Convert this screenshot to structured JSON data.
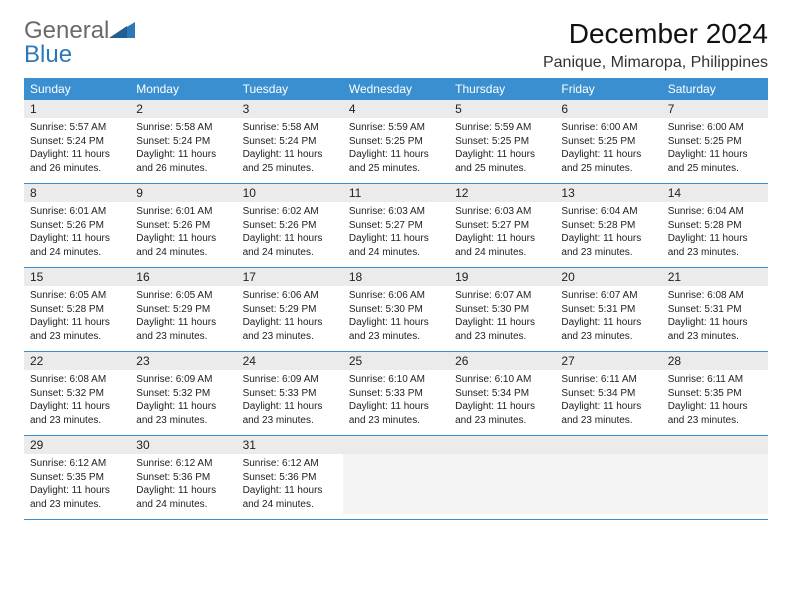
{
  "brand": {
    "word1": "General",
    "word2": "Blue"
  },
  "title": "December 2024",
  "location": "Panique, Mimaropa, Philippines",
  "colors": {
    "header_bg": "#3a8fd0",
    "header_text": "#ffffff",
    "daynum_bg": "#ebebeb",
    "body_bg": "#ffffff",
    "row_border": "#3a8fd0",
    "brand_gray": "#6a6a6a",
    "brand_blue": "#2f78b8"
  },
  "weekdays": [
    "Sunday",
    "Monday",
    "Tuesday",
    "Wednesday",
    "Thursday",
    "Friday",
    "Saturday"
  ],
  "weeks": [
    [
      {
        "n": "1",
        "sr": "Sunrise: 5:57 AM",
        "ss": "Sunset: 5:24 PM",
        "d1": "Daylight: 11 hours",
        "d2": "and 26 minutes."
      },
      {
        "n": "2",
        "sr": "Sunrise: 5:58 AM",
        "ss": "Sunset: 5:24 PM",
        "d1": "Daylight: 11 hours",
        "d2": "and 26 minutes."
      },
      {
        "n": "3",
        "sr": "Sunrise: 5:58 AM",
        "ss": "Sunset: 5:24 PM",
        "d1": "Daylight: 11 hours",
        "d2": "and 25 minutes."
      },
      {
        "n": "4",
        "sr": "Sunrise: 5:59 AM",
        "ss": "Sunset: 5:25 PM",
        "d1": "Daylight: 11 hours",
        "d2": "and 25 minutes."
      },
      {
        "n": "5",
        "sr": "Sunrise: 5:59 AM",
        "ss": "Sunset: 5:25 PM",
        "d1": "Daylight: 11 hours",
        "d2": "and 25 minutes."
      },
      {
        "n": "6",
        "sr": "Sunrise: 6:00 AM",
        "ss": "Sunset: 5:25 PM",
        "d1": "Daylight: 11 hours",
        "d2": "and 25 minutes."
      },
      {
        "n": "7",
        "sr": "Sunrise: 6:00 AM",
        "ss": "Sunset: 5:25 PM",
        "d1": "Daylight: 11 hours",
        "d2": "and 25 minutes."
      }
    ],
    [
      {
        "n": "8",
        "sr": "Sunrise: 6:01 AM",
        "ss": "Sunset: 5:26 PM",
        "d1": "Daylight: 11 hours",
        "d2": "and 24 minutes."
      },
      {
        "n": "9",
        "sr": "Sunrise: 6:01 AM",
        "ss": "Sunset: 5:26 PM",
        "d1": "Daylight: 11 hours",
        "d2": "and 24 minutes."
      },
      {
        "n": "10",
        "sr": "Sunrise: 6:02 AM",
        "ss": "Sunset: 5:26 PM",
        "d1": "Daylight: 11 hours",
        "d2": "and 24 minutes."
      },
      {
        "n": "11",
        "sr": "Sunrise: 6:03 AM",
        "ss": "Sunset: 5:27 PM",
        "d1": "Daylight: 11 hours",
        "d2": "and 24 minutes."
      },
      {
        "n": "12",
        "sr": "Sunrise: 6:03 AM",
        "ss": "Sunset: 5:27 PM",
        "d1": "Daylight: 11 hours",
        "d2": "and 24 minutes."
      },
      {
        "n": "13",
        "sr": "Sunrise: 6:04 AM",
        "ss": "Sunset: 5:28 PM",
        "d1": "Daylight: 11 hours",
        "d2": "and 23 minutes."
      },
      {
        "n": "14",
        "sr": "Sunrise: 6:04 AM",
        "ss": "Sunset: 5:28 PM",
        "d1": "Daylight: 11 hours",
        "d2": "and 23 minutes."
      }
    ],
    [
      {
        "n": "15",
        "sr": "Sunrise: 6:05 AM",
        "ss": "Sunset: 5:28 PM",
        "d1": "Daylight: 11 hours",
        "d2": "and 23 minutes."
      },
      {
        "n": "16",
        "sr": "Sunrise: 6:05 AM",
        "ss": "Sunset: 5:29 PM",
        "d1": "Daylight: 11 hours",
        "d2": "and 23 minutes."
      },
      {
        "n": "17",
        "sr": "Sunrise: 6:06 AM",
        "ss": "Sunset: 5:29 PM",
        "d1": "Daylight: 11 hours",
        "d2": "and 23 minutes."
      },
      {
        "n": "18",
        "sr": "Sunrise: 6:06 AM",
        "ss": "Sunset: 5:30 PM",
        "d1": "Daylight: 11 hours",
        "d2": "and 23 minutes."
      },
      {
        "n": "19",
        "sr": "Sunrise: 6:07 AM",
        "ss": "Sunset: 5:30 PM",
        "d1": "Daylight: 11 hours",
        "d2": "and 23 minutes."
      },
      {
        "n": "20",
        "sr": "Sunrise: 6:07 AM",
        "ss": "Sunset: 5:31 PM",
        "d1": "Daylight: 11 hours",
        "d2": "and 23 minutes."
      },
      {
        "n": "21",
        "sr": "Sunrise: 6:08 AM",
        "ss": "Sunset: 5:31 PM",
        "d1": "Daylight: 11 hours",
        "d2": "and 23 minutes."
      }
    ],
    [
      {
        "n": "22",
        "sr": "Sunrise: 6:08 AM",
        "ss": "Sunset: 5:32 PM",
        "d1": "Daylight: 11 hours",
        "d2": "and 23 minutes."
      },
      {
        "n": "23",
        "sr": "Sunrise: 6:09 AM",
        "ss": "Sunset: 5:32 PM",
        "d1": "Daylight: 11 hours",
        "d2": "and 23 minutes."
      },
      {
        "n": "24",
        "sr": "Sunrise: 6:09 AM",
        "ss": "Sunset: 5:33 PM",
        "d1": "Daylight: 11 hours",
        "d2": "and 23 minutes."
      },
      {
        "n": "25",
        "sr": "Sunrise: 6:10 AM",
        "ss": "Sunset: 5:33 PM",
        "d1": "Daylight: 11 hours",
        "d2": "and 23 minutes."
      },
      {
        "n": "26",
        "sr": "Sunrise: 6:10 AM",
        "ss": "Sunset: 5:34 PM",
        "d1": "Daylight: 11 hours",
        "d2": "and 23 minutes."
      },
      {
        "n": "27",
        "sr": "Sunrise: 6:11 AM",
        "ss": "Sunset: 5:34 PM",
        "d1": "Daylight: 11 hours",
        "d2": "and 23 minutes."
      },
      {
        "n": "28",
        "sr": "Sunrise: 6:11 AM",
        "ss": "Sunset: 5:35 PM",
        "d1": "Daylight: 11 hours",
        "d2": "and 23 minutes."
      }
    ],
    [
      {
        "n": "29",
        "sr": "Sunrise: 6:12 AM",
        "ss": "Sunset: 5:35 PM",
        "d1": "Daylight: 11 hours",
        "d2": "and 23 minutes."
      },
      {
        "n": "30",
        "sr": "Sunrise: 6:12 AM",
        "ss": "Sunset: 5:36 PM",
        "d1": "Daylight: 11 hours",
        "d2": "and 24 minutes."
      },
      {
        "n": "31",
        "sr": "Sunrise: 6:12 AM",
        "ss": "Sunset: 5:36 PM",
        "d1": "Daylight: 11 hours",
        "d2": "and 24 minutes."
      },
      {
        "empty": true
      },
      {
        "empty": true
      },
      {
        "empty": true
      },
      {
        "empty": true
      }
    ]
  ]
}
